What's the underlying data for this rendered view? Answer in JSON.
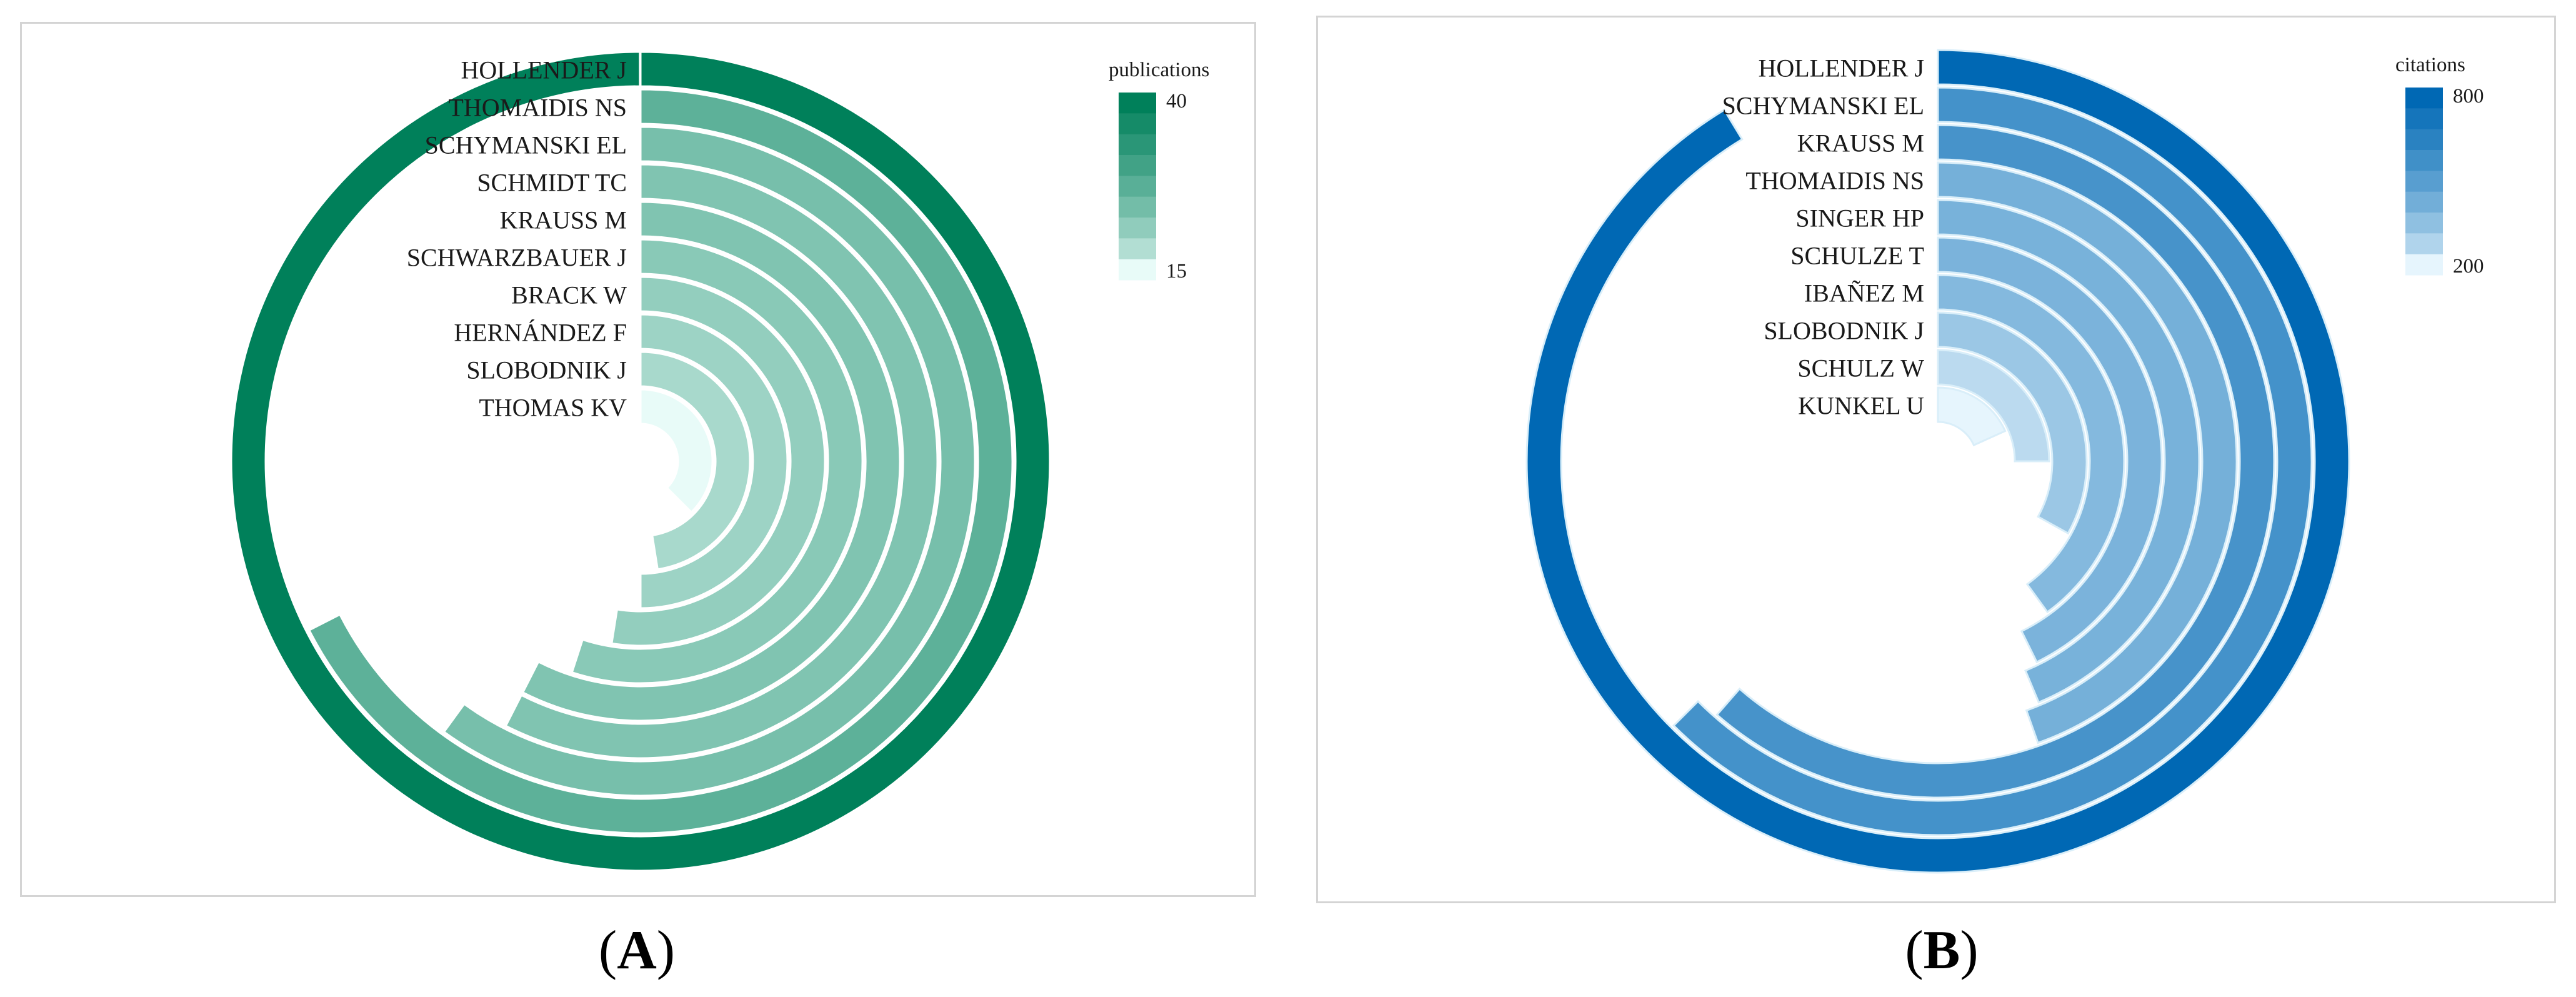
{
  "chart_data": [
    {
      "type": "radial-bar",
      "panel_label": "A",
      "legend_title": "publications",
      "legend_min": 15,
      "legend_max": 40,
      "legend_placement": "top-right",
      "max_value": 40,
      "categories": [
        "HOLLENDER J",
        "THOMAIDIS NS",
        "SCHYMANSKI EL",
        "SCHMIDT TC",
        "KRAUSS M",
        "SCHWARZBAUER J",
        "BRACK W",
        "HERNÁNDEZ F",
        "SLOBODNIK J",
        "THOMAS KV"
      ],
      "values": [
        40,
        27,
        24,
        23,
        23,
        22,
        21,
        20,
        19,
        15
      ],
      "color_low": "#e8fbf8",
      "color_high": "#00805a"
    },
    {
      "type": "radial-bar",
      "panel_label": "B",
      "legend_title": "citations",
      "legend_min": 200,
      "legend_max": 800,
      "legend_placement": "top-right",
      "max_value": 920,
      "categories": [
        "HOLLENDER J",
        "SCHYMANSKI EL",
        "KRAUSS M",
        "THOMAIDIS NS",
        "SINGER HP",
        "SCHULZE T",
        "IBAÑEZ M",
        "SLOBODNIK J",
        "SCHULZ W",
        "KUNKEL U"
      ],
      "values": [
        840,
        575,
        565,
        410,
        402,
        393,
        368,
        304,
        230,
        168
      ],
      "color_low": "#e6f5fd",
      "color_high": "#0068b4"
    }
  ]
}
